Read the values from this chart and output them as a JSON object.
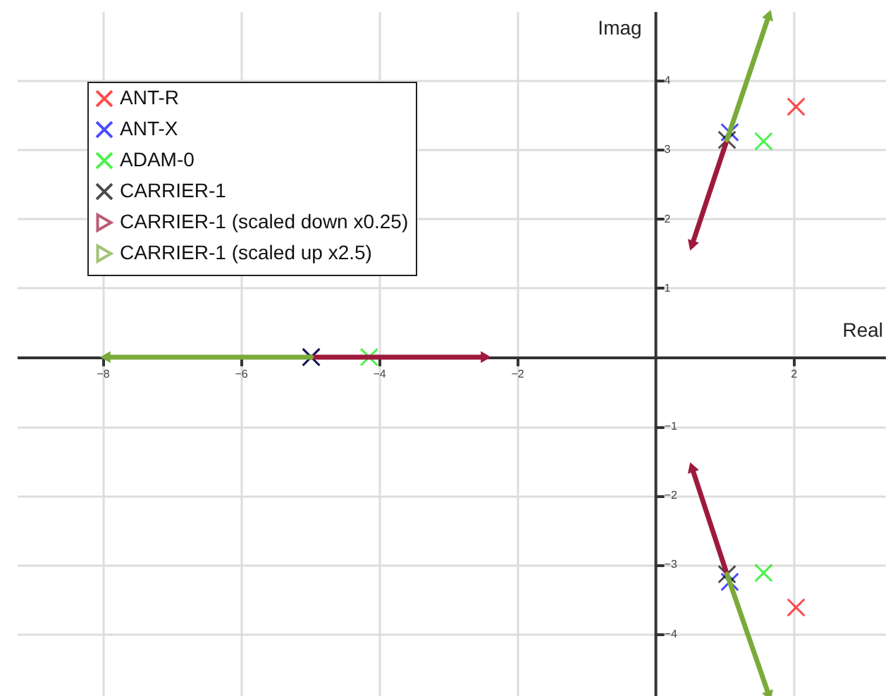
{
  "chart_data": {
    "type": "scatter",
    "xlabel": "Real",
    "ylabel": "Imag",
    "xlim": [
      -9.24,
      3.33
    ],
    "ylim": [
      -4.9,
      5.0
    ],
    "xticks": [
      -8,
      -6,
      -4,
      -2,
      2
    ],
    "yticks": [
      -4,
      -3,
      -2,
      -1,
      1,
      2,
      3,
      4
    ],
    "grid": true,
    "legend": "top left",
    "marker": "cross",
    "series": [
      {
        "name": "ANT-R",
        "color": "#ff0000",
        "x": [
          2.04,
          2.04
        ],
        "values": [
          3.62,
          -3.62
        ]
      },
      {
        "name": "ANT-X",
        "color": "#0000ff",
        "x": [
          1.08,
          1.08,
          -4.98
        ],
        "values": [
          3.25,
          -3.25,
          0
        ]
      },
      {
        "name": "ADAM-0",
        "color": "#00ee00",
        "x": [
          1.57,
          1.57,
          -4.14
        ],
        "values": [
          3.12,
          -3.12,
          0
        ]
      },
      {
        "name": "CARRIER-1",
        "color": "#000000",
        "x": [
          1.04,
          1.04,
          -4.98
        ],
        "values": [
          3.14,
          -3.14,
          0
        ]
      },
      {
        "name": "CARRIER-1 (scaled down x0.25)",
        "type": "line",
        "marker": "triangle",
        "color": "#9e1a3c",
        "x": [
          1.04,
          0.53
        ],
        "values": [
          3.14,
          1.61
        ]
      },
      {
        "type": "line",
        "marker": "triangle",
        "color": "#9e1a3c",
        "x": [
          1.04,
          0.53
        ],
        "values": [
          -3.14,
          -1.59
        ]
      },
      {
        "type": "line",
        "marker": "triangle",
        "color": "#9e1a3c",
        "x": [
          -4.98,
          -2.45
        ],
        "values": [
          0,
          0
        ]
      },
      {
        "name": "CARRIER-1 (scaled up x2.5)",
        "type": "line",
        "marker": "triangle",
        "color": "#7aab3a",
        "x": [
          1.04,
          1.65
        ],
        "values": [
          3.14,
          4.95
        ]
      },
      {
        "type": "line",
        "marker": "triangle",
        "color": "#7aab3a",
        "x": [
          1.04,
          1.65
        ],
        "values": [
          -3.14,
          -4.9
        ]
      },
      {
        "type": "line",
        "marker": "triangle",
        "color": "#7aab3a",
        "x": [
          -4.98,
          -7.96
        ],
        "values": [
          0,
          0
        ]
      }
    ]
  }
}
